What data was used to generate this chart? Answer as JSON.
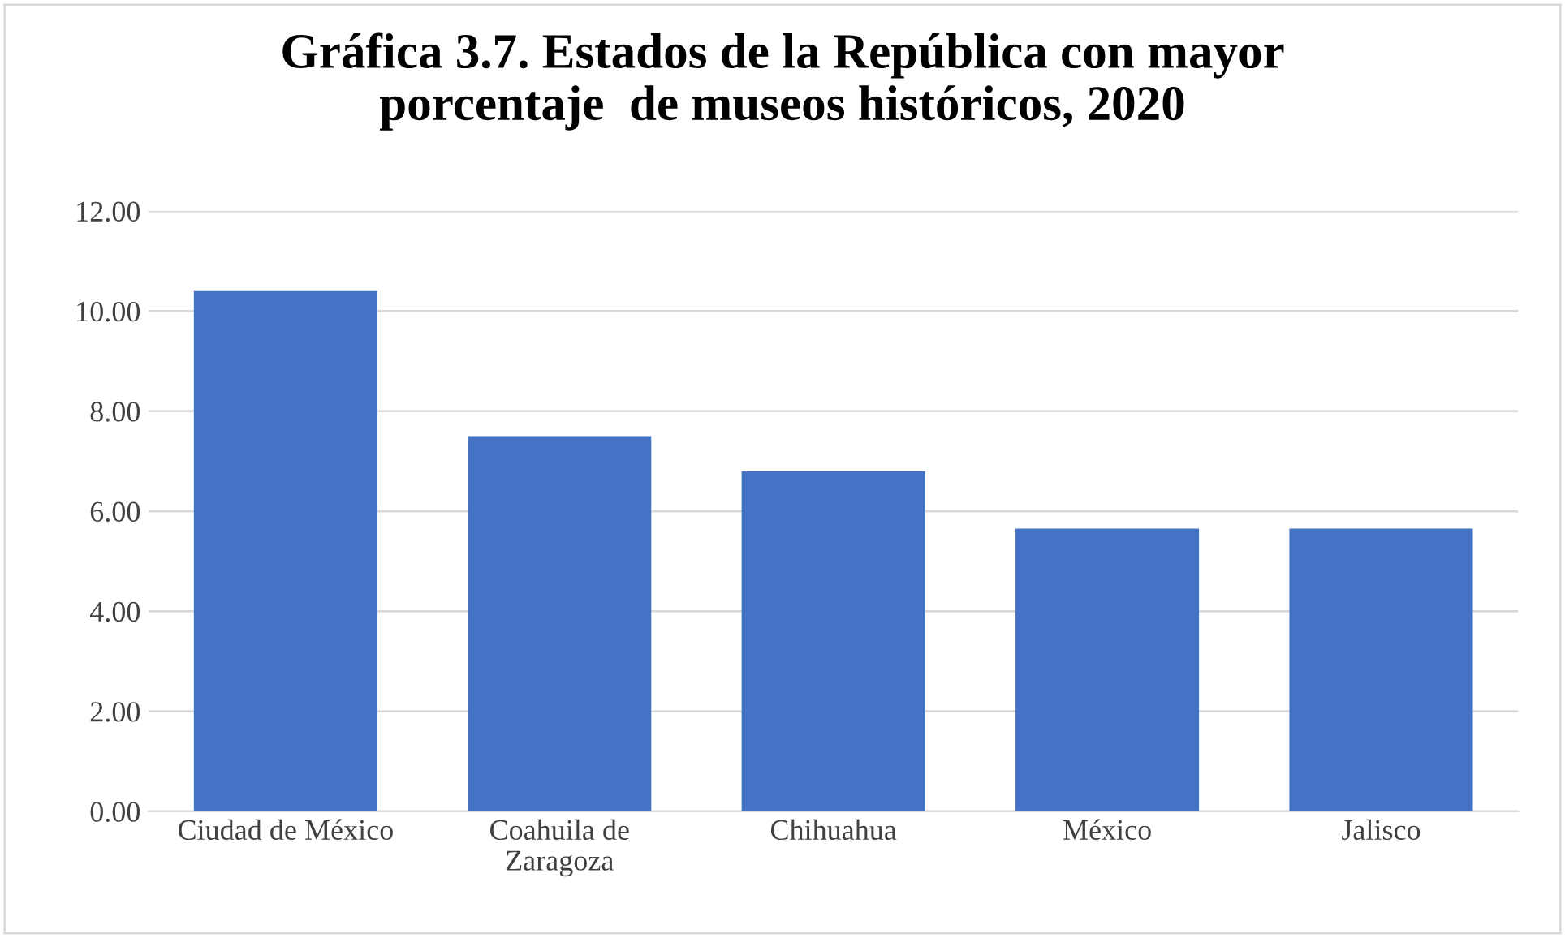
{
  "chart_data": {
    "type": "bar",
    "title": "Gráfica 3.7. Estados de la República con mayor\nporcentaje  de museos históricos, 2020",
    "categories": [
      "Ciudad de México",
      "Coahuila de\nZaragoza",
      "Chihuahua",
      "México",
      "Jalisco"
    ],
    "values": [
      10.4,
      7.5,
      6.8,
      5.65,
      5.65
    ],
    "color": "#4472c4",
    "ylim": [
      0,
      12
    ],
    "yticks": [
      {
        "value": 0,
        "label": "0.00"
      },
      {
        "value": 2,
        "label": "2.00"
      },
      {
        "value": 4,
        "label": "4.00"
      },
      {
        "value": 6,
        "label": "6.00"
      },
      {
        "value": 8,
        "label": "8.00"
      },
      {
        "value": 10,
        "label": "10.00"
      },
      {
        "value": 12,
        "label": "12.00"
      }
    ],
    "grid": "y"
  }
}
